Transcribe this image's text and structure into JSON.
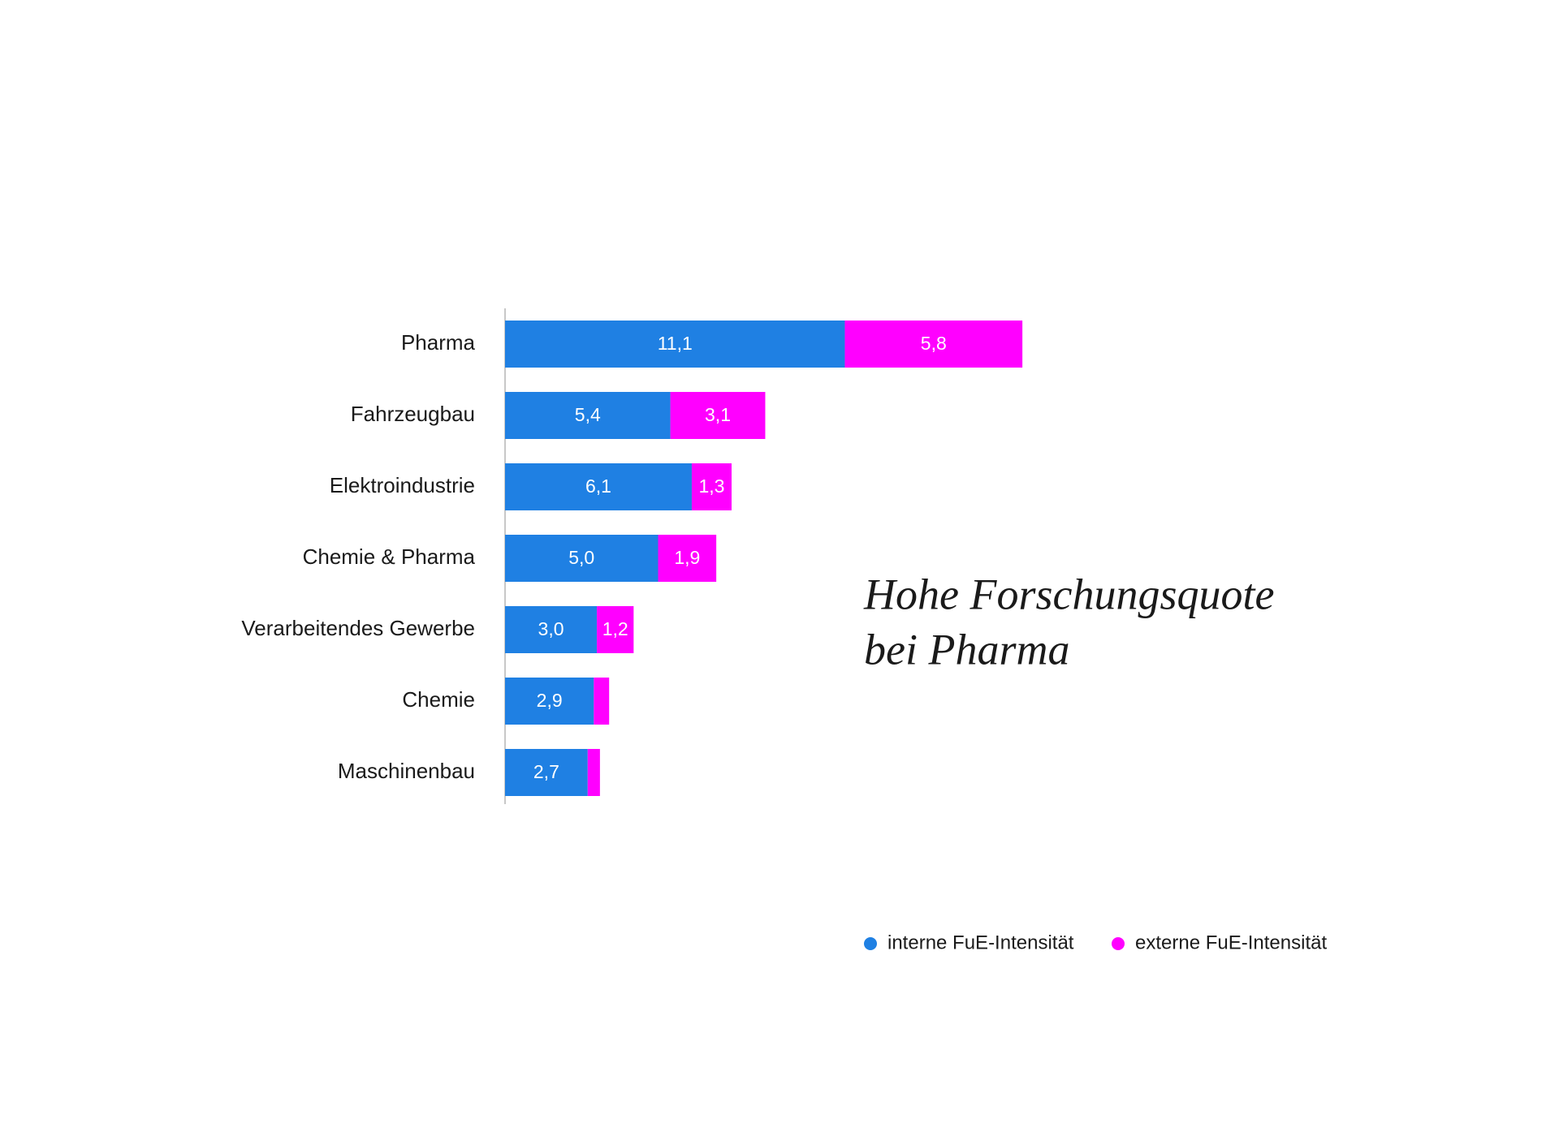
{
  "chart_data": {
    "type": "stacked-barh",
    "categories": [
      "Pharma",
      "Fahrzeugbau",
      "Elektroindustrie",
      "Chemie & Pharma",
      "Verarbeitendes Gewerbe",
      "Chemie",
      "Maschinenbau"
    ],
    "series": [
      {
        "name": "interne FuE-Intensität",
        "color": "#1f80e3",
        "values": [
          11.1,
          5.4,
          6.1,
          5.0,
          3.0,
          2.9,
          2.7
        ],
        "value_labels": [
          "11,1",
          "5,4",
          "6,1",
          "5,0",
          "3,0",
          "2,9",
          "2,7"
        ]
      },
      {
        "name": "externe FuE-Intensität",
        "color": "#ff00ff",
        "values": [
          5.8,
          3.1,
          1.3,
          1.9,
          1.2,
          0.5,
          0.4
        ],
        "value_labels": [
          "5,8",
          "3,1",
          "1,3",
          "1,9",
          "1,2",
          null,
          null
        ]
      }
    ],
    "annotation": [
      "Hohe Forschungsquote",
      "bei Pharma"
    ]
  }
}
